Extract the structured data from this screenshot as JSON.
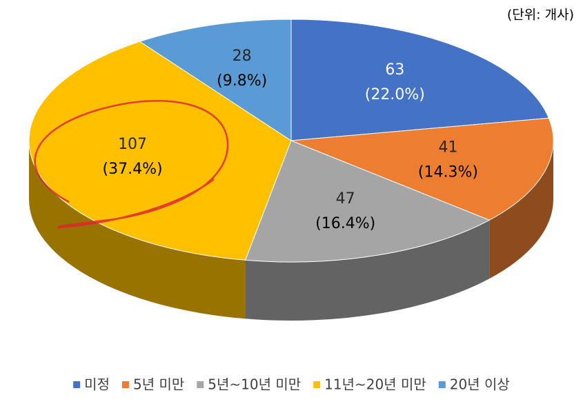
{
  "chart_data": {
    "type": "pie3d",
    "unit_label": "(단위: 개사)",
    "categories": [
      "미정",
      "5년 미만",
      "5년~10년 미만",
      "11년~20년 미만",
      "20년 이상"
    ],
    "values": [
      63,
      41,
      47,
      107,
      28
    ],
    "percent_labels": [
      "(22.0%)",
      "(14.3%)",
      "(16.4%)",
      "(37.4%)",
      "(9.8%)"
    ],
    "colors": [
      "#4472c4",
      "#ed7d31",
      "#a5a5a5",
      "#ffc000",
      "#5b9bd5"
    ],
    "legend": "bottom"
  }
}
